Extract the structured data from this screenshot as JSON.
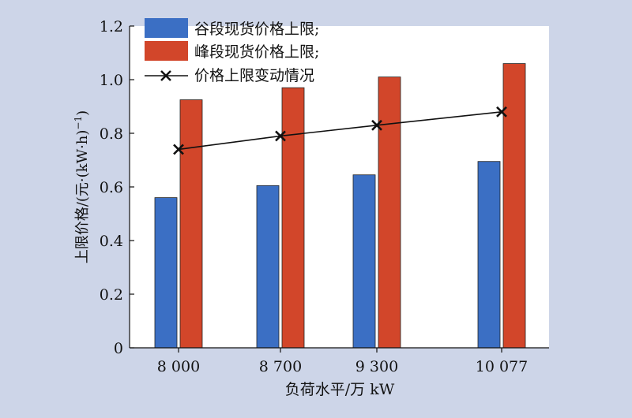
{
  "chart_data": {
    "type": "bar",
    "title": "",
    "xlabel": "负荷水平/万 kW",
    "ylabel": "上限价格/(元·(kW·h)⁻¹)",
    "ylabel_main": "上限价格/(元·(kW·h)",
    "ylabel_sup": "−1",
    "ylabel_tail": ")",
    "categories": [
      "8 000",
      "8 700",
      "9 300",
      "10 077"
    ],
    "ylim": [
      0,
      1.2
    ],
    "yticks": [
      "0",
      "0.2",
      "0.4",
      "0.6",
      "0.8",
      "1.0",
      "1.2"
    ],
    "grid": false,
    "legend_position": "top-left",
    "series": [
      {
        "name": "谷段现货价格上限;",
        "kind": "bar",
        "color": "#3b6fc4",
        "values": [
          0.56,
          0.605,
          0.645,
          0.695
        ]
      },
      {
        "name": "峰段现货价格上限;",
        "kind": "bar",
        "color": "#d2462a",
        "values": [
          0.925,
          0.97,
          1.01,
          1.06
        ]
      },
      {
        "name": "价格上限变动情况",
        "kind": "line",
        "color": "#111111",
        "marker": "x",
        "values": [
          0.74,
          0.79,
          0.83,
          0.88
        ]
      }
    ]
  }
}
